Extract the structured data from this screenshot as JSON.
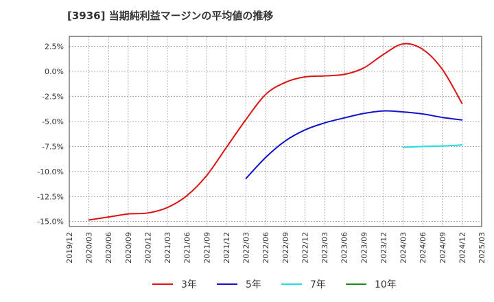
{
  "chart_data": {
    "type": "line",
    "title": "[3936]  当期純利益マージンの平均値の推移",
    "xlabel": "",
    "ylabel": "",
    "x_ticks": [
      "2019/12",
      "2020/03",
      "2020/06",
      "2020/09",
      "2020/12",
      "2021/03",
      "2021/06",
      "2021/09",
      "2021/12",
      "2022/03",
      "2022/06",
      "2022/09",
      "2022/12",
      "2023/03",
      "2023/06",
      "2023/09",
      "2023/12",
      "2024/03",
      "2024/06",
      "2024/09",
      "2024/12",
      "2025/03"
    ],
    "y_ticks": [
      {
        "value": 2.5,
        "label": "2.5%"
      },
      {
        "value": 0.0,
        "label": "0.0%"
      },
      {
        "value": -2.5,
        "label": "-2.5%"
      },
      {
        "value": -5.0,
        "label": "-5.0%"
      },
      {
        "value": -7.5,
        "label": "-7.5%"
      },
      {
        "value": -10.0,
        "label": "-10.0%"
      },
      {
        "value": -12.5,
        "label": "-12.5%"
      },
      {
        "value": -15.0,
        "label": "-15.0%"
      }
    ],
    "ylim": [
      -15.5,
      3.5
    ],
    "grid": true,
    "legend_position": "bottom",
    "series": [
      {
        "name": "3年",
        "color": "#dd1111",
        "points": [
          [
            "2020/03",
            -14.85
          ],
          [
            "2020/06",
            -14.55
          ],
          [
            "2020/09",
            -14.25
          ],
          [
            "2020/12",
            -14.15
          ],
          [
            "2021/03",
            -13.6
          ],
          [
            "2021/06",
            -12.4
          ],
          [
            "2021/09",
            -10.4
          ],
          [
            "2021/12",
            -7.6
          ],
          [
            "2022/03",
            -4.8
          ],
          [
            "2022/06",
            -2.3
          ],
          [
            "2022/09",
            -1.1
          ],
          [
            "2022/12",
            -0.55
          ],
          [
            "2023/03",
            -0.45
          ],
          [
            "2023/06",
            -0.3
          ],
          [
            "2023/09",
            0.35
          ],
          [
            "2023/12",
            1.7
          ],
          [
            "2024/03",
            2.75
          ],
          [
            "2024/06",
            2.2
          ],
          [
            "2024/09",
            0.2
          ],
          [
            "2024/12",
            -3.2
          ]
        ]
      },
      {
        "name": "5年",
        "color": "#1111cc",
        "points": [
          [
            "2022/03",
            -10.7
          ],
          [
            "2022/06",
            -8.6
          ],
          [
            "2022/09",
            -6.95
          ],
          [
            "2022/12",
            -5.85
          ],
          [
            "2023/03",
            -5.15
          ],
          [
            "2023/06",
            -4.65
          ],
          [
            "2023/09",
            -4.2
          ],
          [
            "2023/12",
            -3.95
          ],
          [
            "2024/03",
            -4.05
          ],
          [
            "2024/06",
            -4.25
          ],
          [
            "2024/09",
            -4.6
          ],
          [
            "2024/12",
            -4.85
          ]
        ]
      },
      {
        "name": "7年",
        "color": "#22dddd",
        "points": [
          [
            "2024/03",
            -7.6
          ],
          [
            "2024/06",
            -7.5
          ],
          [
            "2024/09",
            -7.45
          ],
          [
            "2024/12",
            -7.35
          ]
        ]
      },
      {
        "name": "10年",
        "color": "#228822",
        "points": []
      }
    ]
  }
}
